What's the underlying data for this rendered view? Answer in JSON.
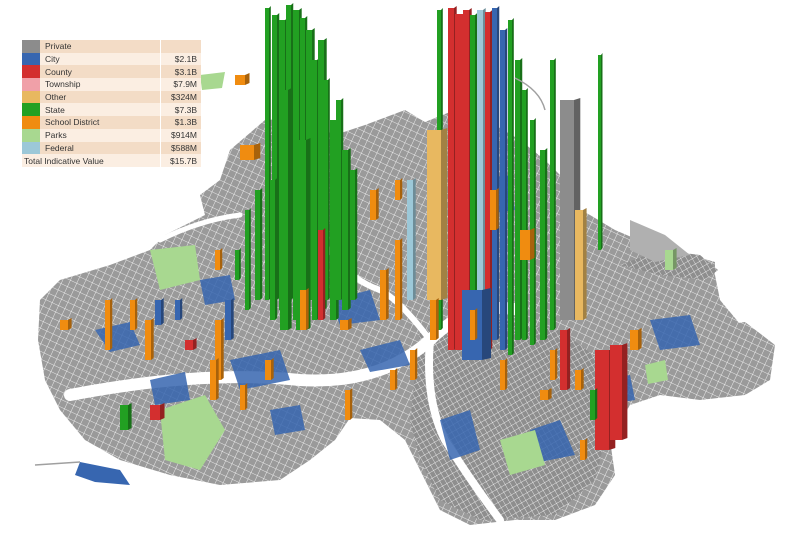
{
  "legend": {
    "items": [
      {
        "label": "Private",
        "value": "",
        "color": "#8c8c8c"
      },
      {
        "label": "City",
        "value": "$2.1B",
        "color": "#3766b0"
      },
      {
        "label": "County",
        "value": "$3.1B",
        "color": "#d32f2f"
      },
      {
        "label": "Township",
        "value": "$7.9M",
        "color": "#f0a0a8"
      },
      {
        "label": "Other",
        "value": "$324M",
        "color": "#e8b860"
      },
      {
        "label": "State",
        "value": "$7.3B",
        "color": "#22a022"
      },
      {
        "label": "School District",
        "value": "$1.3B",
        "color": "#f08c10"
      },
      {
        "label": "Parks",
        "value": "$914M",
        "color": "#a8d890"
      },
      {
        "label": "Federal",
        "value": "$588M",
        "color": "#9cc8d8"
      }
    ],
    "total": {
      "label": "Total Indicative Value",
      "value": "$15.7B"
    }
  }
}
